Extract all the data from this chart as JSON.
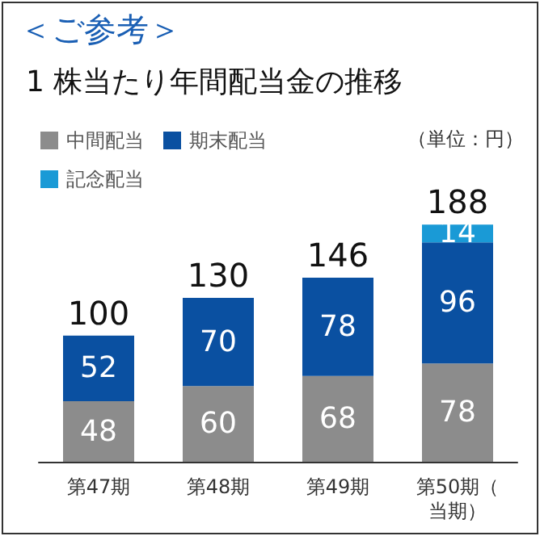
{
  "chart_data": {
    "type": "bar",
    "title": "＜ご参考＞",
    "subtitle": "1 株当たり年間配当金の推移",
    "annotations": [
      "（単位：円）"
    ],
    "categories": [
      "第47期",
      "第48期",
      "第49期",
      "第50期（当期）"
    ],
    "series": [
      {
        "name": "中間配当",
        "color": "#8c8c8c",
        "values": [
          48,
          60,
          68,
          78
        ]
      },
      {
        "name": "期末配当",
        "color": "#0a50a1",
        "values": [
          52,
          70,
          78,
          96
        ]
      },
      {
        "name": "記念配当",
        "color": "#1a9ad6",
        "values": [
          null,
          null,
          null,
          14
        ]
      }
    ],
    "stacked": true,
    "data_labels": true,
    "totals": [
      "100",
      "130",
      "146",
      "188"
    ],
    "legend": "top left",
    "tick_labels": "x"
  }
}
